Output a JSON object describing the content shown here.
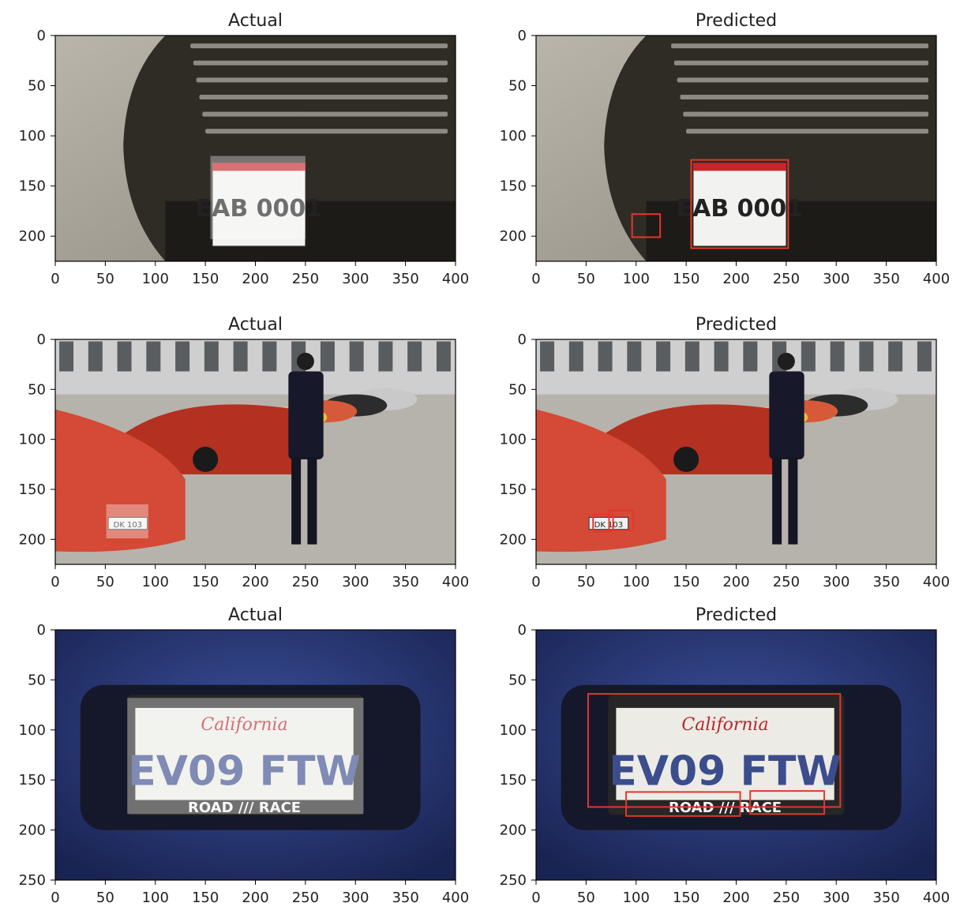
{
  "figure": {
    "panels": [
      {
        "title": "Actual",
        "kind": "actual",
        "scene": "parked-car-front-plate",
        "plate_text": "EAB 0001",
        "x_ticks": [
          "0",
          "50",
          "100",
          "150",
          "200",
          "250",
          "300",
          "350",
          "400"
        ],
        "y_ticks": [
          "0",
          "50",
          "100",
          "150",
          "200"
        ],
        "xlim": [
          0,
          400
        ],
        "ylim": [
          0,
          225
        ],
        "boxes": [
          {
            "x1": 155,
            "y1": 120,
            "x2": 250,
            "y2": 203,
            "style": "white-overlay"
          }
        ]
      },
      {
        "title": "Predicted",
        "kind": "predicted",
        "scene": "parked-car-front-plate",
        "plate_text": "EAB 0001",
        "x_ticks": [
          "0",
          "50",
          "100",
          "150",
          "200",
          "250",
          "300",
          "350",
          "400"
        ],
        "y_ticks": [
          "0",
          "50",
          "100",
          "150",
          "200"
        ],
        "xlim": [
          0,
          400
        ],
        "ylim": [
          0,
          225
        ],
        "boxes": [
          {
            "x1": 155,
            "y1": 124,
            "x2": 252,
            "y2": 212,
            "style": "red-outline"
          },
          {
            "x1": 96,
            "y1": 178,
            "x2": 124,
            "y2": 201,
            "style": "red-outline"
          }
        ]
      },
      {
        "title": "Actual",
        "kind": "actual",
        "scene": "red-sports-cars-and-officer",
        "plate_text": "DK 103",
        "x_ticks": [
          "0",
          "50",
          "100",
          "150",
          "200",
          "250",
          "300",
          "350",
          "400"
        ],
        "y_ticks": [
          "0",
          "50",
          "100",
          "150",
          "200"
        ],
        "xlim": [
          0,
          400
        ],
        "ylim": [
          0,
          225
        ],
        "boxes": [
          {
            "x1": 51,
            "y1": 165,
            "x2": 93,
            "y2": 199,
            "style": "white-overlay"
          }
        ]
      },
      {
        "title": "Predicted",
        "kind": "predicted",
        "scene": "red-sports-cars-and-officer",
        "plate_text": "DK 103",
        "x_ticks": [
          "0",
          "50",
          "100",
          "150",
          "200",
          "250",
          "300",
          "350",
          "400"
        ],
        "y_ticks": [
          "0",
          "50",
          "100",
          "150",
          "200"
        ],
        "xlim": [
          0,
          400
        ],
        "ylim": [
          0,
          225
        ],
        "boxes": [
          {
            "x1": 57,
            "y1": 175,
            "x2": 77,
            "y2": 192,
            "style": "red-outline"
          },
          {
            "x1": 73,
            "y1": 171,
            "x2": 97,
            "y2": 191,
            "style": "red-outline"
          }
        ]
      },
      {
        "title": "Actual",
        "kind": "actual",
        "scene": "blue-car-california-plate",
        "plate_text": "EV09 FTW",
        "x_ticks": [
          "0",
          "50",
          "100",
          "150",
          "200",
          "250",
          "300",
          "350",
          "400"
        ],
        "y_ticks": [
          "0",
          "50",
          "100",
          "150",
          "200",
          "250"
        ],
        "xlim": [
          0,
          400
        ],
        "ylim": [
          0,
          250
        ],
        "boxes": [
          {
            "x1": 72,
            "y1": 68,
            "x2": 308,
            "y2": 184,
            "style": "white-overlay"
          }
        ]
      },
      {
        "title": "Predicted",
        "kind": "predicted",
        "scene": "blue-car-california-plate",
        "plate_text": "EV09 FTW",
        "x_ticks": [
          "0",
          "50",
          "100",
          "150",
          "200",
          "250",
          "300",
          "350",
          "400"
        ],
        "y_ticks": [
          "0",
          "50",
          "100",
          "150",
          "200",
          "250"
        ],
        "xlim": [
          0,
          400
        ],
        "ylim": [
          0,
          250
        ],
        "boxes": [
          {
            "x1": 52,
            "y1": 64,
            "x2": 304,
            "y2": 177,
            "style": "red-outline"
          },
          {
            "x1": 90,
            "y1": 162,
            "x2": 204,
            "y2": 186,
            "style": "red-outline"
          },
          {
            "x1": 214,
            "y1": 161,
            "x2": 288,
            "y2": 184,
            "style": "red-outline"
          }
        ]
      }
    ]
  },
  "colors": {
    "box_outline": "#e3372c",
    "overlay": "#ffffff",
    "axis": "#000000",
    "text": "#222222"
  }
}
